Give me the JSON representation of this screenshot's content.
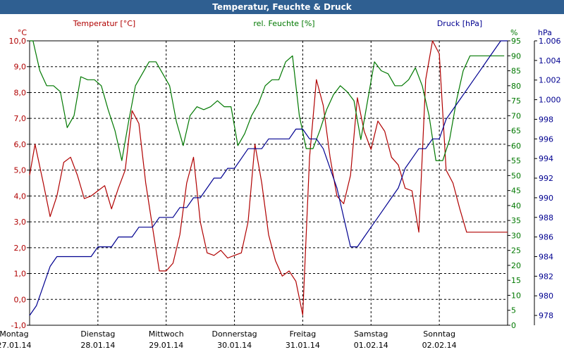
{
  "window": {
    "title": "Temperatur, Feuchte & Druck"
  },
  "chart_data": {
    "type": "line",
    "title": "Temperatur, Feuchte & Druck",
    "colors": {
      "temperature": "#b00000",
      "humidity": "#007800",
      "pressure": "#000090",
      "grid": "#000000"
    },
    "axes": {
      "temperature": {
        "label": "Temperatur [°C]",
        "unit": "°C",
        "range": [
          -1.0,
          10.0
        ],
        "ticks": [
          "-1,0",
          "0,0",
          "1,0",
          "2,0",
          "3,0",
          "4,0",
          "5,0",
          "6,0",
          "7,0",
          "8,0",
          "9,0",
          "10,0"
        ]
      },
      "humidity": {
        "label": "rel. Feuchte [%]",
        "unit": "%",
        "range": [
          0,
          95
        ],
        "ticks": [
          "0",
          "5",
          "10",
          "15",
          "20",
          "25",
          "30",
          "35",
          "40",
          "45",
          "50",
          "55",
          "60",
          "65",
          "70",
          "75",
          "80",
          "85",
          "90",
          "95"
        ]
      },
      "pressure": {
        "label": "Druck [hPa]",
        "unit": "hPa",
        "range": [
          977,
          1006
        ],
        "ticks": [
          "978",
          "980",
          "982",
          "984",
          "986",
          "988",
          "990",
          "992",
          "994",
          "996",
          "998",
          "1.000",
          "1.002",
          "1.004",
          "1.006"
        ]
      }
    },
    "x": {
      "range_days": [
        0,
        7
      ],
      "day_labels": [
        {
          "day": "Montag",
          "date": "27.01.14"
        },
        {
          "day": "Dienstag",
          "date": "28.01.14"
        },
        {
          "day": "Mittwoch",
          "date": "29.01.14"
        },
        {
          "day": "Donnerstag",
          "date": "30.01.14"
        },
        {
          "day": "Freitag",
          "date": "31.01.14"
        },
        {
          "day": "Samstag",
          "date": "01.02.14"
        },
        {
          "day": "Sonntag",
          "date": "02.02.14"
        }
      ]
    },
    "grid": true,
    "series": [
      {
        "name": "Temperatur [°C]",
        "axis": "temperature",
        "color": "#b00000",
        "x": [
          0,
          0.08,
          0.2,
          0.3,
          0.4,
          0.5,
          0.6,
          0.7,
          0.8,
          0.9,
          1.0,
          1.1,
          1.2,
          1.3,
          1.4,
          1.5,
          1.6,
          1.7,
          1.8,
          1.9,
          2.0,
          2.1,
          2.2,
          2.3,
          2.4,
          2.5,
          2.6,
          2.7,
          2.8,
          2.9,
          3.0,
          3.1,
          3.2,
          3.3,
          3.4,
          3.5,
          3.6,
          3.7,
          3.8,
          3.9,
          4.0,
          4.1,
          4.2,
          4.3,
          4.4,
          4.5,
          4.6,
          4.7,
          4.8,
          4.9,
          5.0,
          5.1,
          5.2,
          5.3,
          5.4,
          5.5,
          5.6,
          5.7,
          5.8,
          5.9,
          6.0,
          6.1,
          6.2,
          6.3,
          6.4,
          6.5,
          6.6,
          6.7,
          6.8,
          6.9,
          7.0
        ],
        "y": [
          4.8,
          6.0,
          4.5,
          3.2,
          4.0,
          5.3,
          5.5,
          4.8,
          3.9,
          4.0,
          4.2,
          4.4,
          3.5,
          4.3,
          5.0,
          7.3,
          6.8,
          4.5,
          2.8,
          1.1,
          1.1,
          1.4,
          2.5,
          4.5,
          5.5,
          3.0,
          1.8,
          1.7,
          1.9,
          1.6,
          1.7,
          1.8,
          3.0,
          6.0,
          4.5,
          2.5,
          1.5,
          0.9,
          1.1,
          0.7,
          -0.6,
          5.5,
          8.5,
          7.5,
          5.5,
          4.0,
          3.7,
          4.8,
          7.8,
          6.5,
          5.8,
          6.9,
          6.5,
          5.5,
          5.2,
          4.3,
          4.2,
          2.6,
          8.5,
          10.0,
          9.5,
          5.0,
          4.5,
          3.5,
          2.6,
          2.6,
          2.6,
          2.6,
          2.6,
          2.6,
          2.6
        ]
      },
      {
        "name": "rel. Feuchte [%]",
        "axis": "humidity",
        "color": "#007800",
        "x": [
          0,
          0.05,
          0.15,
          0.25,
          0.35,
          0.45,
          0.55,
          0.65,
          0.75,
          0.85,
          0.95,
          1.05,
          1.15,
          1.25,
          1.35,
          1.45,
          1.55,
          1.65,
          1.75,
          1.85,
          1.95,
          2.05,
          2.15,
          2.25,
          2.35,
          2.45,
          2.55,
          2.65,
          2.75,
          2.85,
          2.95,
          3.05,
          3.15,
          3.25,
          3.35,
          3.45,
          3.55,
          3.65,
          3.75,
          3.85,
          3.95,
          4.05,
          4.15,
          4.25,
          4.35,
          4.45,
          4.55,
          4.65,
          4.75,
          4.85,
          4.95,
          5.05,
          5.15,
          5.25,
          5.35,
          5.45,
          5.55,
          5.65,
          5.75,
          5.85,
          5.95,
          6.05,
          6.15,
          6.25,
          6.35,
          6.45,
          6.55,
          6.65,
          6.75,
          6.85,
          6.95
        ],
        "y": [
          95,
          95,
          85,
          80,
          80,
          78,
          66,
          70,
          83,
          82,
          82,
          80,
          72,
          65,
          55,
          68,
          80,
          84,
          88,
          88,
          84,
          80,
          68,
          60,
          70,
          73,
          72,
          73,
          75,
          73,
          73,
          60,
          64,
          70,
          74,
          80,
          82,
          82,
          88,
          90,
          70,
          59,
          59,
          65,
          72,
          77,
          80,
          78,
          75,
          62,
          75,
          88,
          85,
          84,
          80,
          80,
          82,
          86,
          80,
          70,
          55,
          55,
          62,
          75,
          85,
          90,
          90,
          90,
          90,
          90,
          90
        ]
      },
      {
        "name": "Druck [hPa]",
        "axis": "pressure",
        "color": "#000090",
        "x": [
          0,
          0.1,
          0.2,
          0.3,
          0.4,
          0.5,
          0.6,
          0.7,
          0.8,
          0.9,
          1.0,
          1.1,
          1.2,
          1.3,
          1.4,
          1.5,
          1.6,
          1.7,
          1.8,
          1.9,
          2.0,
          2.1,
          2.2,
          2.3,
          2.4,
          2.5,
          2.6,
          2.7,
          2.8,
          2.9,
          3.0,
          3.1,
          3.2,
          3.3,
          3.4,
          3.5,
          3.6,
          3.7,
          3.8,
          3.9,
          4.0,
          4.1,
          4.2,
          4.3,
          4.4,
          4.5,
          4.6,
          4.7,
          4.8,
          4.9,
          5.0,
          5.1,
          5.2,
          5.3,
          5.4,
          5.5,
          5.6,
          5.7,
          5.8,
          5.9,
          6.0,
          6.1,
          6.2,
          6.3,
          6.4,
          6.5,
          6.6,
          6.7,
          6.8,
          6.9,
          7.0
        ],
        "y": [
          978,
          979,
          981,
          983,
          984,
          984,
          984,
          984,
          984,
          984,
          985,
          985,
          985,
          986,
          986,
          986,
          987,
          987,
          987,
          988,
          988,
          988,
          989,
          989,
          990,
          990,
          991,
          992,
          992,
          993,
          993,
          994,
          995,
          995,
          995,
          996,
          996,
          996,
          996,
          997,
          997,
          996,
          996,
          995,
          993,
          991,
          988,
          985,
          985,
          986,
          987,
          988,
          989,
          990,
          991,
          993,
          994,
          995,
          995,
          996,
          996,
          998,
          999,
          1000,
          1001,
          1002,
          1003,
          1004,
          1005,
          1006,
          1006
        ]
      }
    ]
  }
}
